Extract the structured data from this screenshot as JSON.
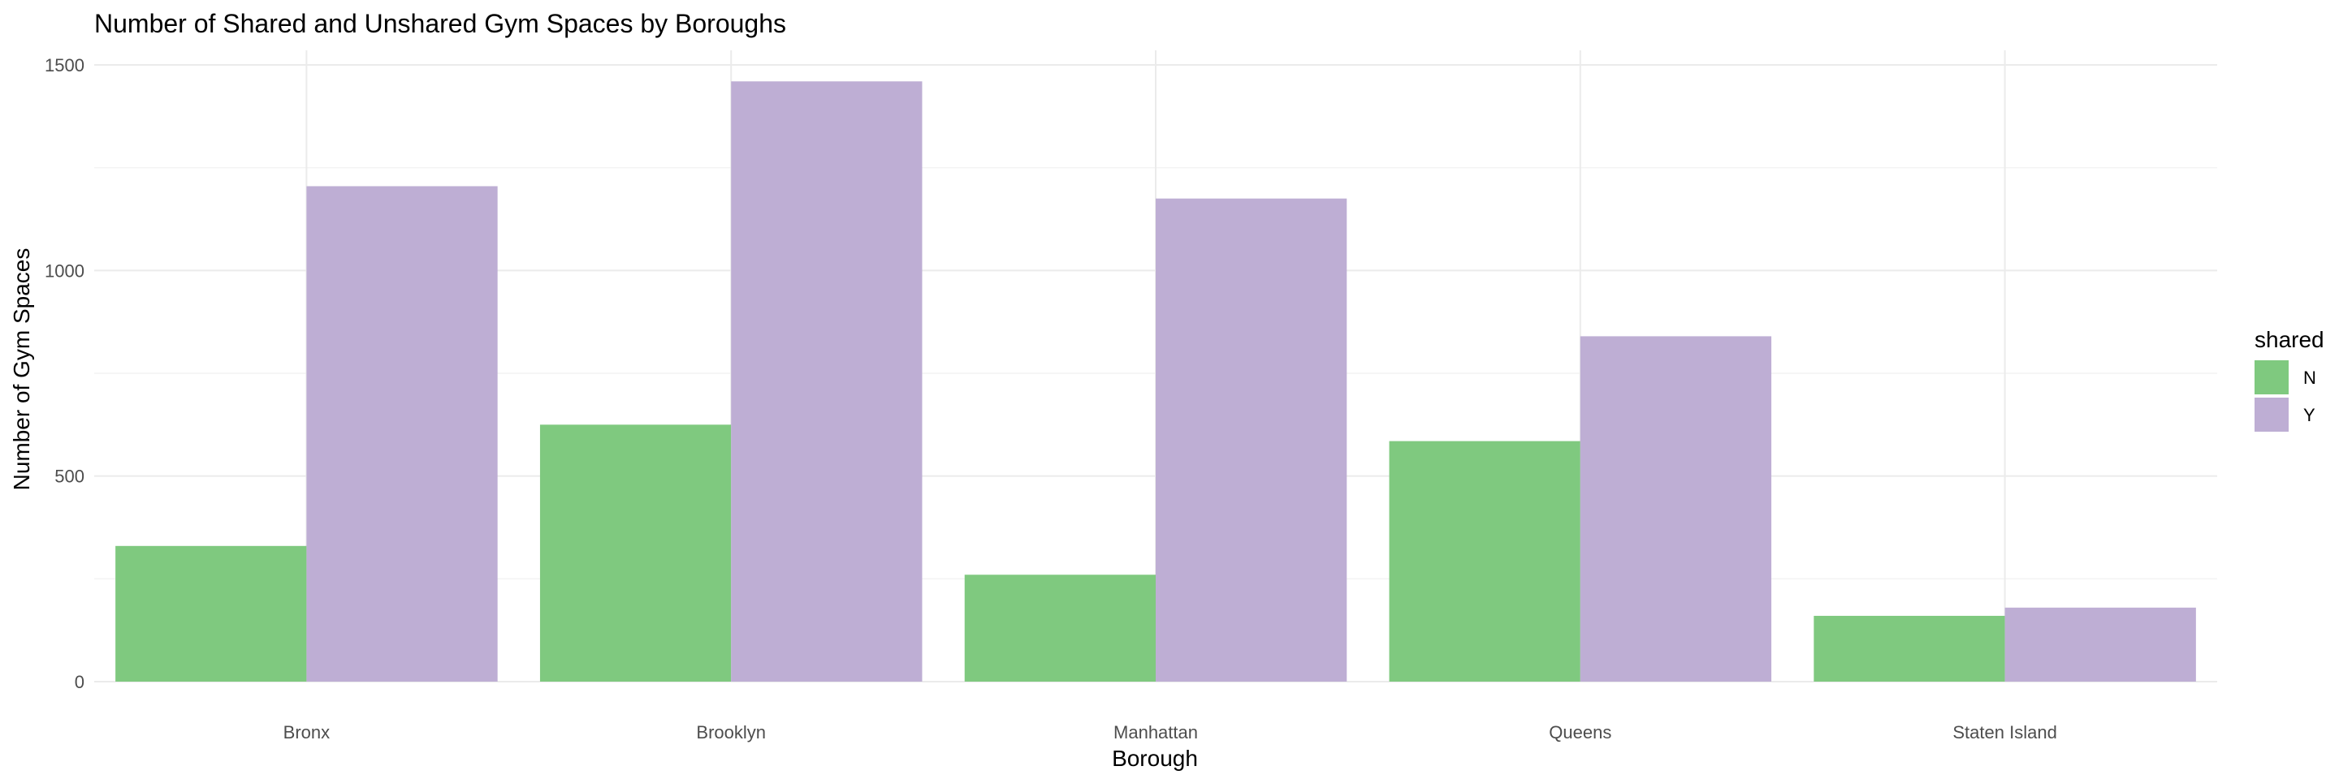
{
  "chart_data": {
    "type": "bar",
    "title": "Number of Shared and Unshared Gym Spaces by Boroughs",
    "xlabel": "Borough",
    "ylabel": "Number of Gym Spaces",
    "categories": [
      "Bronx",
      "Brooklyn",
      "Manhattan",
      "Queens",
      "Staten Island"
    ],
    "series": [
      {
        "name": "N",
        "color": "#7fc97f",
        "values": [
          330,
          625,
          260,
          585,
          160
        ]
      },
      {
        "name": "Y",
        "color": "#beaed4",
        "values": [
          1205,
          1460,
          1175,
          840,
          180
        ]
      }
    ],
    "ylim": [
      0,
      1500
    ],
    "yticks": [
      0,
      500,
      1000,
      1500
    ],
    "grid": true,
    "legend": {
      "title": "shared",
      "position": "right"
    }
  }
}
